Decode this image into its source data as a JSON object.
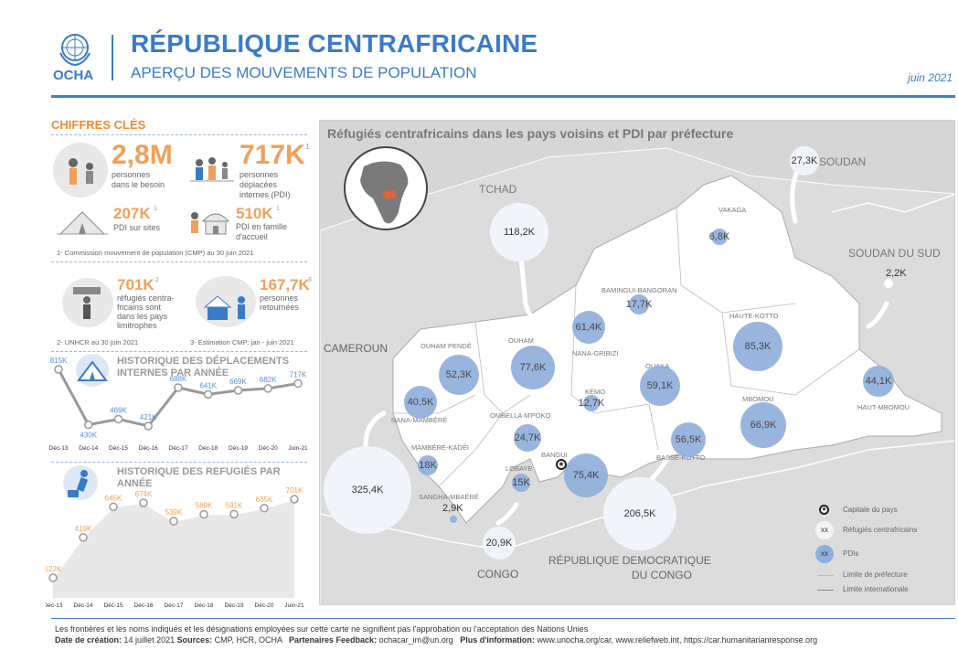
{
  "header": {
    "org": "OCHA",
    "title": "RÉPUBLIQUE CENTRAFRICAINE",
    "subtitle": "APERÇU DES MOUVEMENTS DE POPULATION",
    "date": "juin 2021"
  },
  "key_figures": {
    "title": "CHIFFRES CLÉS",
    "in_need": {
      "value": "2,8M",
      "label1": "personnes",
      "label2": "dans le besoin"
    },
    "idp": {
      "value": "717K",
      "sup": "1",
      "label1": "personnes",
      "label2": "déplacées",
      "label3": "internes (PDI)"
    },
    "sites": {
      "value": "207K",
      "sup": "1",
      "label": "PDI sur sites"
    },
    "host": {
      "value": "510K",
      "sup": "1",
      "label1": "PDI en famille",
      "label2": "d'accueil"
    },
    "note1": "1- Commission mouvement de population (CMP) au 30 juin 2021",
    "refugees": {
      "value": "701K",
      "sup": "2",
      "label1": "réfugiés centra-",
      "label2": "fricains sont",
      "label3": "dans les pays",
      "label4": "limitrophes"
    },
    "returnees": {
      "value": "167,7K",
      "sup": "3",
      "label1": "personnes",
      "label2": "retournées"
    },
    "note2": "2- UNHCR au 30 juin 2021",
    "note3": "3- Estimation CMP: jan - juin 2021"
  },
  "chart_data": [
    {
      "type": "line",
      "title": "HISTORIQUE DES DÉPLACEMENTS INTERNES PAR ANNÉE",
      "categories": [
        "Déc-13",
        "Déc-14",
        "Déc-15",
        "Déc-16",
        "Déc-17",
        "Déc-18",
        "Déc-19",
        "Déc-20",
        "Juin-21"
      ],
      "values": [
        815,
        430,
        469,
        421,
        688,
        641,
        669,
        682,
        717
      ],
      "labels": [
        "815K",
        "430K",
        "469K",
        "421K",
        "688K",
        "641K",
        "669K",
        "682K",
        "717K"
      ],
      "color": "#5b8fcc"
    },
    {
      "type": "area",
      "title": "HISTORIQUE DES REFUGIÉS PAR ANNÉE",
      "categories": [
        "Déc-13",
        "Déc-14",
        "Déc-15",
        "Déc-16",
        "Déc-17",
        "Déc-18",
        "Déc-19",
        "Déc-20",
        "Juin-21"
      ],
      "values": [
        122,
        419,
        645,
        674,
        539,
        589,
        591,
        635,
        701
      ],
      "labels": [
        "122K",
        "419K",
        "645K",
        "674K",
        "539K",
        "589K",
        "591K",
        "635K",
        "701K"
      ],
      "color": "#f0a05a"
    }
  ],
  "map": {
    "title": "Réfugiés centrafricains dans les pays voisins et PDI par préfecture",
    "countries": {
      "tchad": "TCHAD",
      "soudan": "SOUDAN",
      "soudan_sud": "SOUDAN DU SUD",
      "cameroun": "CAMEROUN",
      "congo": "CONGO",
      "rdc1": "RÉPUBLIQUE DEMOCRATIQUE",
      "rdc2": "DU CONGO"
    },
    "refugee_bubbles": [
      {
        "label": "118,2K"
      },
      {
        "label": "27,3K"
      },
      {
        "label": "2,2K"
      },
      {
        "label": "325,4K"
      },
      {
        "label": "206,5K"
      },
      {
        "label": "20,9K"
      }
    ],
    "idp_bubbles": [
      {
        "prefecture": "VAKAGA",
        "label": "6,8K"
      },
      {
        "prefecture": "BAMINGUI-BANGORAN",
        "label": "17,7K"
      },
      {
        "prefecture": "HAUTE-KOTTO",
        "label": "85,3K"
      },
      {
        "prefecture": "HAUT-MBOMOU",
        "label": "44,1K"
      },
      {
        "prefecture": "OUHAM PENDÉ",
        "label": "52,3K"
      },
      {
        "prefecture": "OUHAM",
        "label": "77,6K"
      },
      {
        "prefecture": "NANA-GRIBIZI",
        "label": "61,4K"
      },
      {
        "prefecture": "OUAKA",
        "label": "59,1K"
      },
      {
        "prefecture": "MBOMOU",
        "label": "66,9K"
      },
      {
        "prefecture": "NANA-MAMBÉRÉ",
        "label": "40,5K"
      },
      {
        "prefecture": "KÉMO",
        "label": "12,7K"
      },
      {
        "prefecture": "OMBELLA M'POKO",
        "label": "24,7K"
      },
      {
        "prefecture": "BASSE-KOTTO",
        "label": "56,5K"
      },
      {
        "prefecture": "MAMBÉRÉ-KADÉI",
        "label": "18K"
      },
      {
        "prefecture": "LOBAYE",
        "label": "15K"
      },
      {
        "prefecture": "BANGUI",
        "label": "75,4K"
      },
      {
        "prefecture": "SANGHA-MBAÉRÉ",
        "label": "2,9K"
      }
    ],
    "legend": {
      "capital": "Capitale du pays",
      "refugees_symbol": "xx",
      "refugees": "Réfugiés centrafricains",
      "idp_symbol": "xx",
      "idp": "PDIs",
      "prefecture_limit": "Limite de préfecture",
      "intl_limit": "Limite internationale"
    }
  },
  "footer": {
    "disclaimer": "Les frontières et les noms indiqués et les désignations employées sur cette carte ne signifient pas l'approbation ou l'acceptation des Nations Unies",
    "created_label": "Date de création:",
    "created": "14 juillet 2021",
    "sources_label": "Sources:",
    "sources": "CMP, HCR, OCHA",
    "feedback_label": "Partenaires Feedback:",
    "feedback": "ochacar_im@un.org",
    "info_label": "Plus d'information:",
    "info": "www.unocha.org/car, www.reliefweb.int, https://car.humanitarianresponse.org"
  }
}
